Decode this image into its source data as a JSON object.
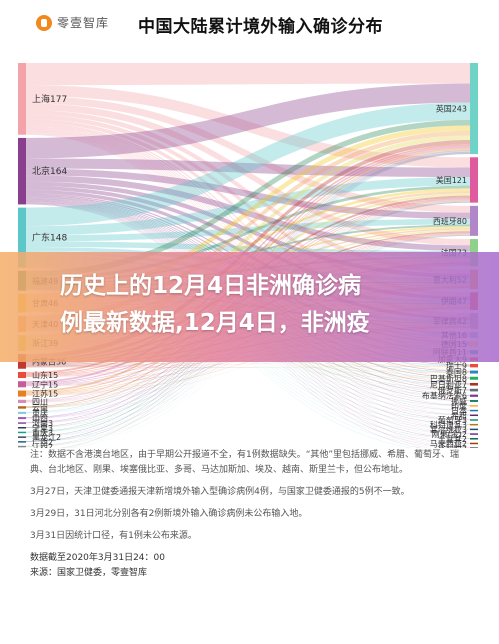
{
  "logo_text": "零壹智库",
  "title": "中国大陆累计境外输入确诊分布",
  "chart_data": {
    "type": "sankey",
    "title": "中国大陆累计境外输入确诊分布",
    "left_nodes": [
      {
        "label": "上海177",
        "name": "上海",
        "value": 177,
        "color": "#f4a3a8"
      },
      {
        "label": "北京164",
        "name": "北京",
        "value": 164,
        "color": "#8a3f8e"
      },
      {
        "label": "广东148",
        "name": "广东",
        "value": 148,
        "color": "#5cc7c9"
      },
      {
        "label": "福建49",
        "name": "福建",
        "value": 49,
        "color": "#2d8b5a"
      },
      {
        "label": "甘肃46",
        "name": "甘肃",
        "value": 46,
        "color": "#f0c419"
      },
      {
        "label": "天津40",
        "name": "天津",
        "value": 40,
        "color": "#f2a154"
      },
      {
        "label": "浙江39",
        "name": "浙江",
        "value": 39,
        "color": "#e3d54f"
      },
      {
        "label": "内蒙古36",
        "name": "内蒙古",
        "value": 36,
        "color": "#c0392b"
      },
      {
        "label": "山东15",
        "name": "山东",
        "value": 15,
        "color": "#e74c3c"
      },
      {
        "label": "辽宁15",
        "name": "辽宁",
        "value": 15,
        "color": "#c65a9b"
      },
      {
        "label": "江苏15",
        "name": "江苏",
        "value": 15,
        "color": "#e67e22"
      },
      {
        "label": "四川",
        "name": "四川",
        "value": 8,
        "color": "#d98cb3"
      },
      {
        "label": "云南",
        "name": "云南",
        "value": 6,
        "color": "#b5651d"
      },
      {
        "label": "重庆",
        "name": "重庆",
        "value": 5,
        "color": "#7ec8e3"
      },
      {
        "label": "山西",
        "name": "山西",
        "value": 5,
        "color": "#9b59b6"
      },
      {
        "label": "河南3",
        "name": "河南",
        "value": 3,
        "color": "#8e44ad"
      },
      {
        "label": "宁夏3",
        "name": "宁夏",
        "value": 3,
        "color": "#2c3e50"
      },
      {
        "label": "重庆3",
        "name": "重庆",
        "value": 3,
        "color": "#16a085"
      },
      {
        "label": "黑龙江2",
        "name": "黑龙江",
        "value": 2,
        "color": "#34495e"
      },
      {
        "label": "广西2",
        "name": "广西",
        "value": 2,
        "color": "#1f618d"
      },
      {
        "label": "江西2",
        "name": "江西",
        "value": 2,
        "color": "#7f8c8d"
      },
      {
        "label": "贵州1",
        "name": "贵州",
        "value": 1,
        "color": "#95a5a6"
      }
    ],
    "right_nodes": [
      {
        "label": "英国243",
        "name": "英国",
        "value": 243,
        "color": "#6fd3c7"
      },
      {
        "label": "美国121",
        "name": "美国",
        "value": 121,
        "color": "#e05aa0"
      },
      {
        "label": "西班牙80",
        "name": "西班牙",
        "value": 80,
        "color": "#b088c9"
      },
      {
        "label": "法国73",
        "name": "法国",
        "value": 73,
        "color": "#8fd18a"
      },
      {
        "label": "意大利52",
        "name": "意大利",
        "value": 52,
        "color": "#f39c3c"
      },
      {
        "label": "伊朗47",
        "name": "伊朗",
        "value": 47,
        "color": "#e84e40"
      },
      {
        "label": "菲律宾42",
        "name": "菲律宾",
        "value": 42,
        "color": "#b3b3b3"
      },
      {
        "label": "其他16",
        "name": "其他",
        "value": 16,
        "color": "#85c1e9"
      },
      {
        "label": "德国15",
        "name": "德国",
        "value": 15,
        "color": "#f7dc6f"
      },
      {
        "label": "阿联酋11",
        "name": "阿联酋",
        "value": 11,
        "color": "#1abc9c"
      },
      {
        "label": "加拿大9",
        "name": "加拿大",
        "value": 9,
        "color": "#d35400"
      },
      {
        "label": "瑞士9",
        "name": "瑞士",
        "value": 9,
        "color": "#e74c3c"
      },
      {
        "label": "泰国8",
        "name": "泰国",
        "value": 8,
        "color": "#2e86c1"
      },
      {
        "label": "巴基斯坦8",
        "name": "巴基斯坦",
        "value": 8,
        "color": "#27ae60"
      },
      {
        "label": "尼日利亚7",
        "name": "尼日利亚",
        "value": 7,
        "color": "#a93226"
      },
      {
        "label": "俄罗斯7",
        "name": "俄罗斯",
        "value": 7,
        "color": "#5d6d7e"
      },
      {
        "label": "布基纳法索6",
        "name": "布基纳法索",
        "value": 6,
        "color": "#7d3c98"
      },
      {
        "label": "挪威",
        "name": "挪威",
        "value": 5,
        "color": "#117a65"
      },
      {
        "label": "印度",
        "name": "印度",
        "value": 4,
        "color": "#f5b041"
      },
      {
        "label": "日本",
        "name": "日本",
        "value": 3,
        "color": "#2874a6"
      },
      {
        "label": "希腊",
        "name": "希腊",
        "value": 3,
        "color": "#5b2c6f"
      },
      {
        "label": "葡萄牙3",
        "name": "葡萄牙",
        "value": 3,
        "color": "#148f77"
      },
      {
        "label": "科特迪瓦3",
        "name": "科特迪瓦",
        "value": 3,
        "color": "#b9770e"
      },
      {
        "label": "塞尔维亚3",
        "name": "塞尔维亚",
        "value": 3,
        "color": "#1b4f72"
      },
      {
        "label": "刚果(金)2",
        "name": "刚果(金)",
        "value": 2,
        "color": "#6c3483"
      },
      {
        "label": "土耳其2",
        "name": "土耳其",
        "value": 2,
        "color": "#0e6655"
      },
      {
        "label": "马来西亚2",
        "name": "马来西亚",
        "value": 2,
        "color": "#a04000"
      },
      {
        "label": "比利时2",
        "name": "比利时",
        "value": 2,
        "color": "#212f3d"
      },
      {
        "label": "日本2",
        "name": "日本",
        "value": 2,
        "color": "#1a5276"
      }
    ],
    "flow_opacity": 0.45
  },
  "notes": [
    "注：数据不含港澳台地区，由于早期公开报道不全，有1例数据缺失。“其他”里包括挪威、希腊、葡萄牙、瑞典、台北地区、刚果、埃塞俄比亚、多哥、马达加斯加、埃及、越南、斯里兰卡，但公布地址。",
    "3月27日，天津卫健委通报天津新增境外输入型确诊病例4例，与国家卫健委通报的5例不一致。",
    "3月29日，31日河北分别各有2例新境外输入确诊病例未公布输入地。",
    "3月31日因统计口径，有1例未公布来源。",
    "数据截至2020年3月31日24：00",
    "来源：国家卫健委，零壹智库"
  ],
  "overlay_text": [
    "历史上的12月4日非洲确诊病",
    "例最新数据,12月4日，非洲疫"
  ]
}
